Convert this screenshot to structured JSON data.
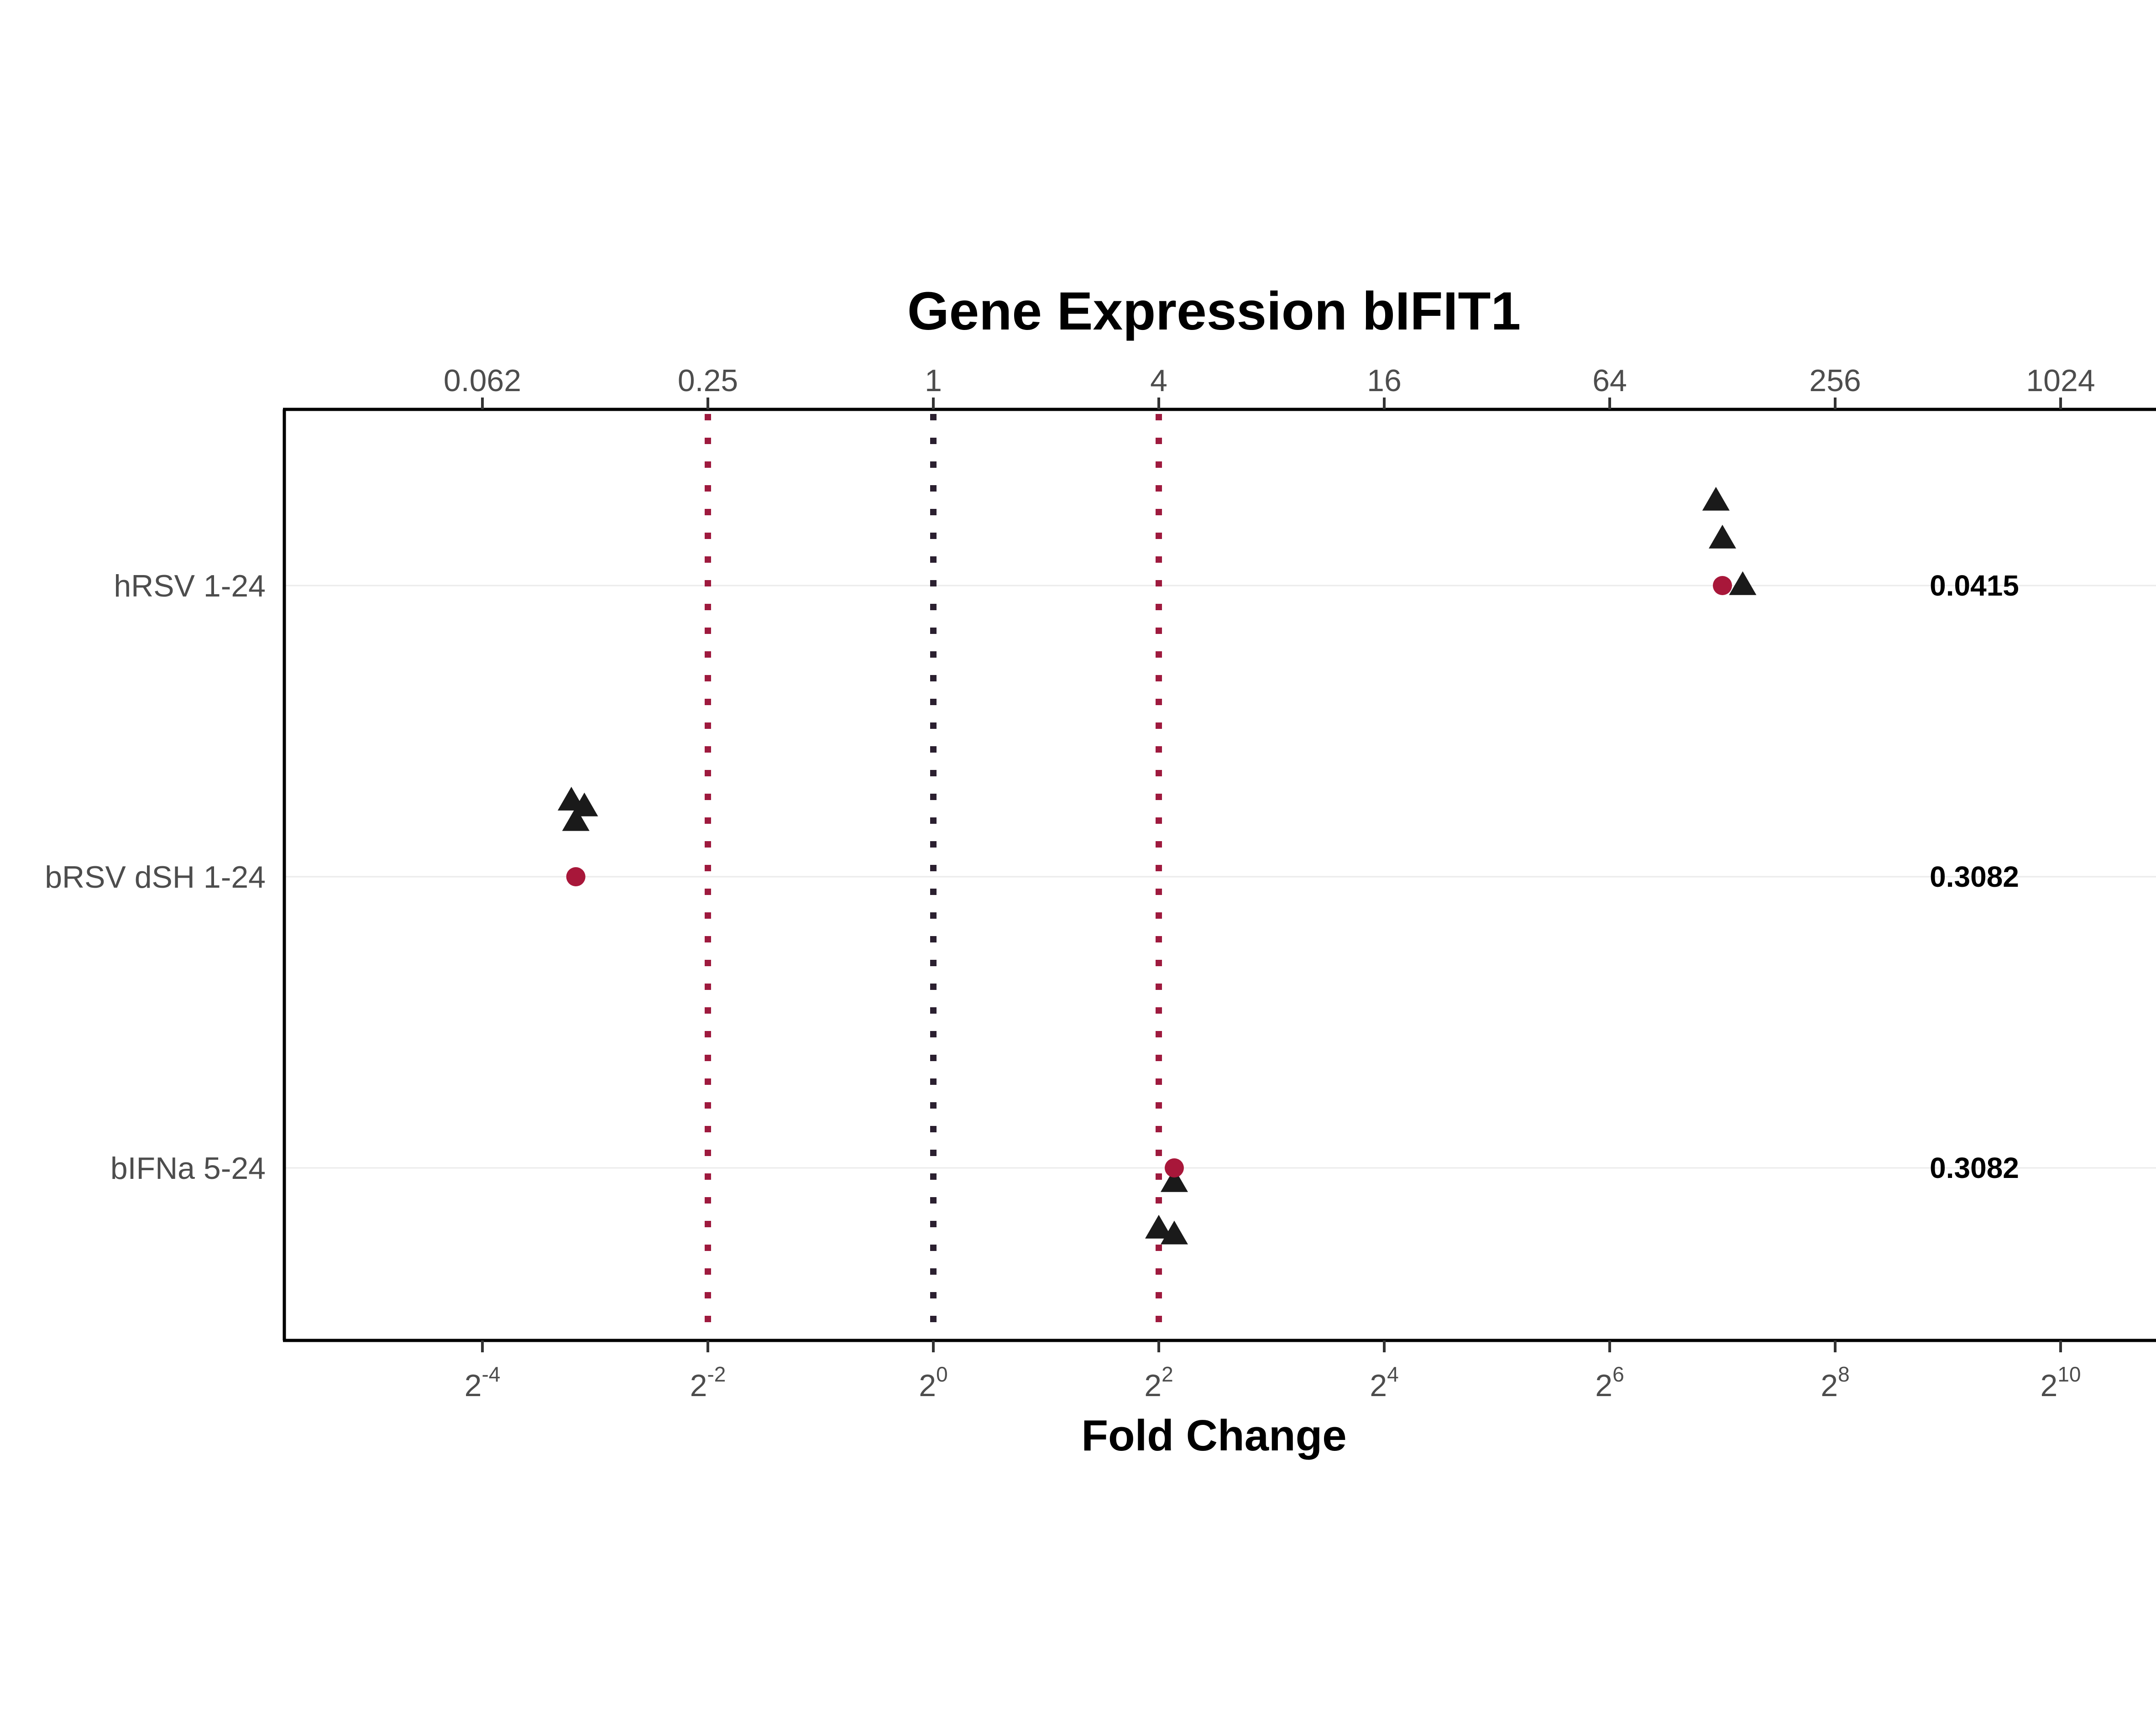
{
  "chart_data": {
    "type": "scatter",
    "title": "Gene Expression bIFIT1",
    "xlabel": "Fold Change",
    "ylabel": "",
    "x_scale": "log2",
    "xlim": [
      0.0175,
      1980
    ],
    "x_bottom_ticks": [
      {
        "value": 0.0625,
        "base": "2",
        "exp": "-4"
      },
      {
        "value": 0.25,
        "base": "2",
        "exp": "-2"
      },
      {
        "value": 1,
        "base": "2",
        "exp": "0"
      },
      {
        "value": 4,
        "base": "2",
        "exp": "2"
      },
      {
        "value": 16,
        "base": "2",
        "exp": "4"
      },
      {
        "value": 64,
        "base": "2",
        "exp": "6"
      },
      {
        "value": 256,
        "base": "2",
        "exp": "8"
      },
      {
        "value": 1024,
        "base": "2",
        "exp": "10"
      }
    ],
    "x_top_ticks": [
      {
        "value": 0.0625,
        "label": "0.062"
      },
      {
        "value": 0.25,
        "label": "0.25"
      },
      {
        "value": 1,
        "label": "1"
      },
      {
        "value": 4,
        "label": "4"
      },
      {
        "value": 16,
        "label": "16"
      },
      {
        "value": 64,
        "label": "64"
      },
      {
        "value": 256,
        "label": "256"
      },
      {
        "value": 1024,
        "label": "1024"
      }
    ],
    "categories": [
      "hRSV 1-24",
      "bRSV dSH 1-24",
      "bIFNa 5-24"
    ],
    "reference_lines": [
      {
        "value": 0.25,
        "color": "#9e1a3e",
        "style": "dotted"
      },
      {
        "value": 1,
        "color": "#2b2030",
        "style": "dotted"
      },
      {
        "value": 4,
        "color": "#9e1a3e",
        "style": "dotted"
      }
    ],
    "series": [
      {
        "marker": "triangle",
        "color": "#1a1a1a",
        "points": [
          {
            "category": "hRSV 1-24",
            "x": 123,
            "offset": 0.29
          },
          {
            "category": "hRSV 1-24",
            "x": 128,
            "offset": 0.16
          },
          {
            "category": "hRSV 1-24",
            "x": 145,
            "offset": 0.0
          },
          {
            "category": "bRSV dSH 1-24",
            "x": 0.108,
            "offset": 0.26
          },
          {
            "category": "bRSV dSH 1-24",
            "x": 0.117,
            "offset": 0.24
          },
          {
            "category": "bRSV dSH 1-24",
            "x": 0.111,
            "offset": 0.19
          },
          {
            "category": "bIFNa 5-24",
            "x": 4.4,
            "offset": -0.05
          },
          {
            "category": "bIFNa 5-24",
            "x": 4.0,
            "offset": -0.21
          },
          {
            "category": "bIFNa 5-24",
            "x": 4.4,
            "offset": -0.23
          }
        ]
      },
      {
        "marker": "circle",
        "color": "#a8173a",
        "points": [
          {
            "category": "hRSV 1-24",
            "x": 128,
            "offset": 0.0
          },
          {
            "category": "bRSV dSH 1-24",
            "x": 0.111,
            "offset": 0.0
          },
          {
            "category": "bIFNa 5-24",
            "x": 4.4,
            "offset": 0.0
          }
        ]
      }
    ],
    "annotations": [
      {
        "category": "hRSV 1-24",
        "text": "0.0415"
      },
      {
        "category": "bRSV dSH 1-24",
        "text": "0.3082"
      },
      {
        "category": "bIFNa 5-24",
        "text": "0.3082"
      }
    ],
    "grid": "horizontal-major-only",
    "legend": "none"
  }
}
